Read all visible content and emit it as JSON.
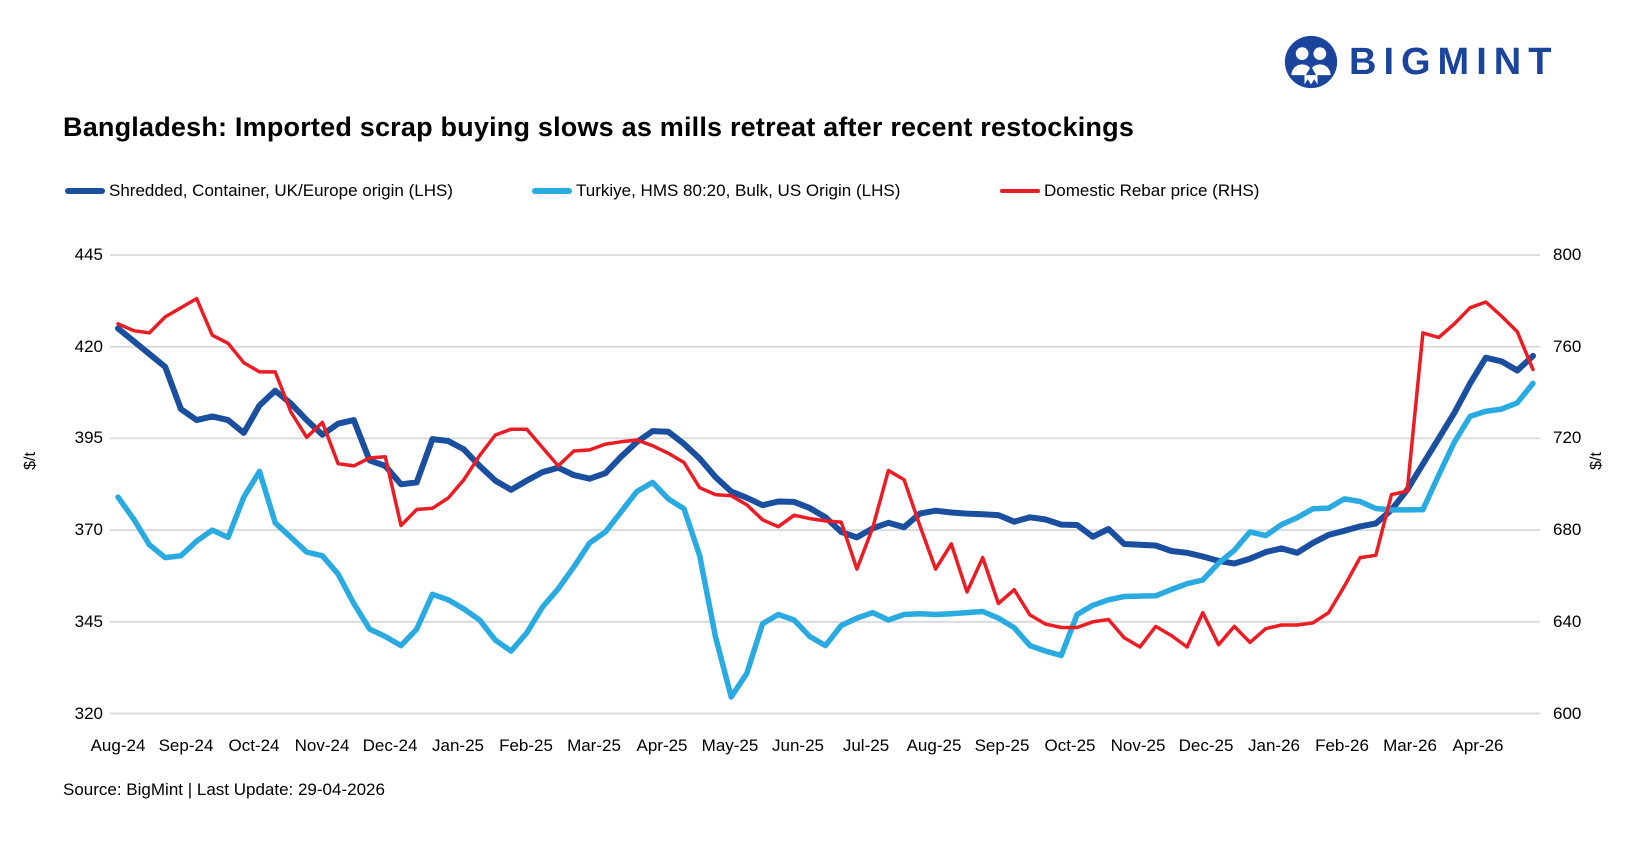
{
  "header": {
    "title": "Bangladesh: Imported scrap buying slows as mills retreat after recent restockings",
    "logo_text": "BIGMINT"
  },
  "brand": {
    "logo_color": "#1b459d"
  },
  "legend": [
    {
      "label": "Shredded, Container, UK/Europe origin (LHS)",
      "color": "#1a4e9e"
    },
    {
      "label": "Turkiye, HMS 80:20, Bulk, US Origin (LHS)",
      "color": "#29abe2"
    },
    {
      "label": "Domestic Rebar price (RHS)",
      "color": "#ec1c24"
    }
  ],
  "axes": {
    "left_label": "$/t",
    "right_label": "$/t",
    "left_ticks": [
      445,
      420,
      395,
      370,
      345,
      320
    ],
    "right_ticks": [
      800,
      760,
      720,
      680,
      640,
      600
    ]
  },
  "footer": {
    "source": "Source: BigMint | Last Update: 29-04-2026"
  },
  "chart_data": {
    "type": "line",
    "title": "Bangladesh: Imported scrap buying slows as mills retreat after recent restockings",
    "frequency": "weekly",
    "grid": "horizontal",
    "legend_position": "top",
    "xlabel": "",
    "ylabel_left": "$/t",
    "ylabel_right": "$/t",
    "ylim_left": [
      320,
      445
    ],
    "ylim_right": [
      600,
      800
    ],
    "x_tick_labels": [
      "Aug-24",
      "Sep-24",
      "Oct-24",
      "Nov-24",
      "Dec-24",
      "Jan-25",
      "Feb-25",
      "Mar-25",
      "Apr-25",
      "May-25",
      "Jun-25",
      "Jul-25",
      "Aug-25",
      "Sep-25",
      "Oct-25",
      "Nov-25",
      "Dec-25",
      "Jan-26",
      "Feb-26",
      "Mar-26",
      "Apr-26"
    ],
    "series": [
      {
        "name": "Shredded, Container, UK/Europe origin (LHS)",
        "axis": "left",
        "color": "#1a4e9e",
        "values": [
          425,
          421.5,
          418,
          414.5,
          403,
          400,
          401,
          400,
          396.5,
          404,
          408,
          404.5,
          400,
          396,
          399,
          400,
          389,
          387.5,
          382.5,
          383,
          394.8,
          394.3,
          392,
          387.5,
          383.5,
          381,
          383.5,
          385.8,
          387,
          385,
          384,
          385.5,
          390,
          394,
          397,
          396.8,
          393.5,
          389.5,
          384.5,
          380.5,
          378.8,
          376.8,
          377.8,
          377.7,
          376,
          373.5,
          369.5,
          368,
          370.5,
          372,
          370.8,
          374.5,
          375.3,
          374.8,
          374.5,
          374.3,
          374.1,
          372.3,
          373.5,
          372.9,
          371.5,
          371.4,
          368.2,
          370.3,
          366.2,
          366,
          365.8,
          364.3,
          363.8,
          362.8,
          361.6,
          360.9,
          362.2,
          364,
          365,
          363.8,
          366.5,
          368.7,
          369.8,
          371,
          371.8,
          375.5,
          381,
          388,
          395,
          402,
          410,
          417,
          416,
          413.5,
          417.5
        ]
      },
      {
        "name": "Turkiye, HMS 80:20, Bulk, US Origin (LHS)",
        "axis": "left",
        "color": "#29abe2",
        "values": [
          379,
          373,
          366,
          362.5,
          363,
          367,
          370,
          368,
          379,
          386,
          372,
          368,
          364,
          363,
          358,
          350,
          343,
          341,
          338.5,
          343,
          352.5,
          351,
          348.5,
          345.5,
          340,
          337,
          342,
          349,
          354,
          360,
          366.5,
          369.5,
          375,
          380.5,
          383,
          378.5,
          375.8,
          363,
          341,
          324.5,
          331,
          344.5,
          347,
          345.5,
          341,
          338.5,
          344,
          346,
          347.5,
          345.5,
          347,
          347.2,
          347,
          347.2,
          347.5,
          347.8,
          346,
          343.4,
          338.5,
          337,
          335.8,
          347,
          349.5,
          351,
          351.9,
          352,
          352.1,
          353.8,
          355.4,
          356.4,
          361,
          364.5,
          369.5,
          368.5,
          371.5,
          373.4,
          375.8,
          376,
          378.5,
          377.8,
          375.9,
          375.5,
          375.5,
          375.6,
          385,
          394,
          401,
          402.4,
          403,
          404.7,
          410
        ]
      },
      {
        "name": "Domestic Rebar price (RHS)",
        "axis": "right",
        "color": "#ec1c24",
        "values": [
          770,
          767,
          766,
          773,
          777,
          781,
          765,
          761.5,
          753,
          749,
          749,
          731.5,
          720.5,
          727,
          709,
          708,
          711.5,
          712,
          682,
          689,
          689.5,
          694,
          702,
          712.5,
          721.5,
          724,
          724,
          716,
          708,
          714.5,
          715,
          717.5,
          718.5,
          719.3,
          716.8,
          713.5,
          709.5,
          698.5,
          695.5,
          695,
          691,
          684.5,
          681.5,
          686.5,
          685,
          684,
          683.5,
          663,
          681,
          706,
          702,
          682,
          663,
          674,
          653,
          668,
          648,
          654,
          643,
          639,
          637.5,
          637.5,
          640,
          641,
          633,
          629,
          638,
          634,
          629,
          644,
          630,
          638,
          631,
          637,
          638.6,
          638.6,
          639.5,
          644,
          655.5,
          668,
          669,
          695.5,
          697,
          766,
          764,
          770,
          777,
          779.5,
          773.3,
          766.5,
          750
        ]
      }
    ]
  }
}
